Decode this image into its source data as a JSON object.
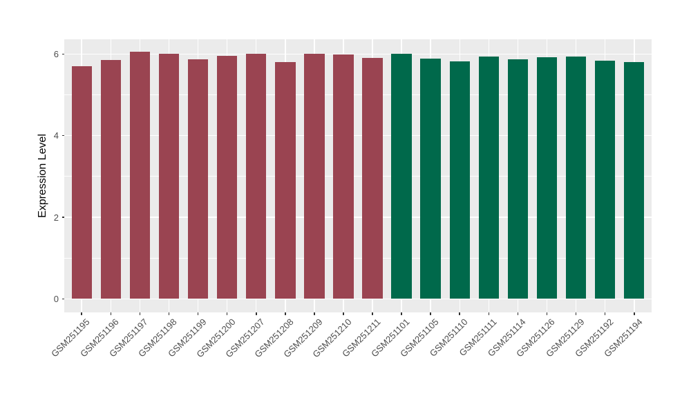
{
  "figure": {
    "background_color": "#FFFFFF",
    "panel_color": "#EBEBEB",
    "grid_color": "#FFFFFF",
    "axis_text_color": "#4D4D4D",
    "axis_title_color": "#000000",
    "tick_mark_color": "#333333"
  },
  "chart_data": {
    "type": "bar",
    "title": "",
    "xlabel": "",
    "ylabel": "Expression Level",
    "legend_position": "none",
    "grid": "major-and-minor",
    "axis_range_y": [
      -0.33,
      6.36
    ],
    "yticks_major": [
      0,
      2,
      4,
      6
    ],
    "yticks_minor": [
      1,
      3,
      5
    ],
    "categories": [
      "GSM251195",
      "GSM251196",
      "GSM251197",
      "GSM251198",
      "GSM251199",
      "GSM251200",
      "GSM251207",
      "GSM251208",
      "GSM251209",
      "GSM251210",
      "GSM251211",
      "GSM251101",
      "GSM251105",
      "GSM251110",
      "GSM251111",
      "GSM251114",
      "GSM251126",
      "GSM251129",
      "GSM251192",
      "GSM251194"
    ],
    "values": [
      5.7,
      5.85,
      6.06,
      6.0,
      5.87,
      5.95,
      6.0,
      5.81,
      6.0,
      5.99,
      5.9,
      6.01,
      5.89,
      5.82,
      5.94,
      5.87,
      5.92,
      5.94,
      5.84,
      5.81
    ],
    "bar_groups": [
      "group1",
      "group1",
      "group1",
      "group1",
      "group1",
      "group1",
      "group1",
      "group1",
      "group1",
      "group1",
      "group1",
      "group2",
      "group2",
      "group2",
      "group2",
      "group2",
      "group2",
      "group2",
      "group2",
      "group2"
    ],
    "group_colors": {
      "group1": "#9A4451",
      "group2": "#00694B"
    }
  }
}
